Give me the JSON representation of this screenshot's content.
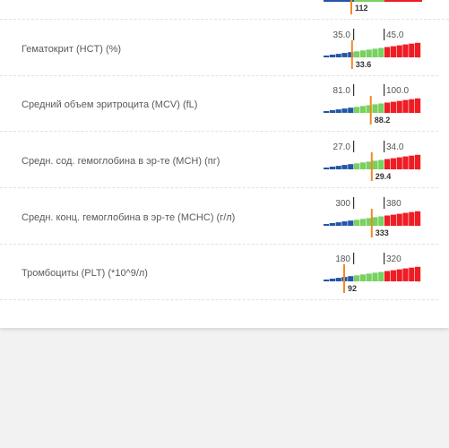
{
  "colors": {
    "low": "#2356a6",
    "normal": "#79d160",
    "high": "#ee1c25",
    "marker": "#f08a24",
    "tick": "#333333"
  },
  "top_partial": {
    "value": "112",
    "marker_frac": 0.28
  },
  "rows": [
    {
      "label": "Гематокрит (HCT) (%)",
      "low": "35.0",
      "high": "45.0",
      "value": "33.6",
      "marker_frac": 0.28
    },
    {
      "label": "Средний объем эритроцита (MCV) (fL)",
      "low": "81.0",
      "high": "100.0",
      "value": "88.2",
      "marker_frac": 0.47
    },
    {
      "label": "Средн. сод. гемоглобина в эр-те (MCH) (пг)",
      "low": "27.0",
      "high": "34.0",
      "value": "29.4",
      "marker_frac": 0.48
    },
    {
      "label": "Средн. конц. гемоглобина в эр-те (MCHC) (г/л)",
      "low": "300",
      "high": "380",
      "value": "333",
      "marker_frac": 0.48
    },
    {
      "label": "Тромбоциты (PLT) (*10^9/л)",
      "low": "180",
      "high": "320",
      "value": "92",
      "marker_frac": 0.2
    }
  ]
}
